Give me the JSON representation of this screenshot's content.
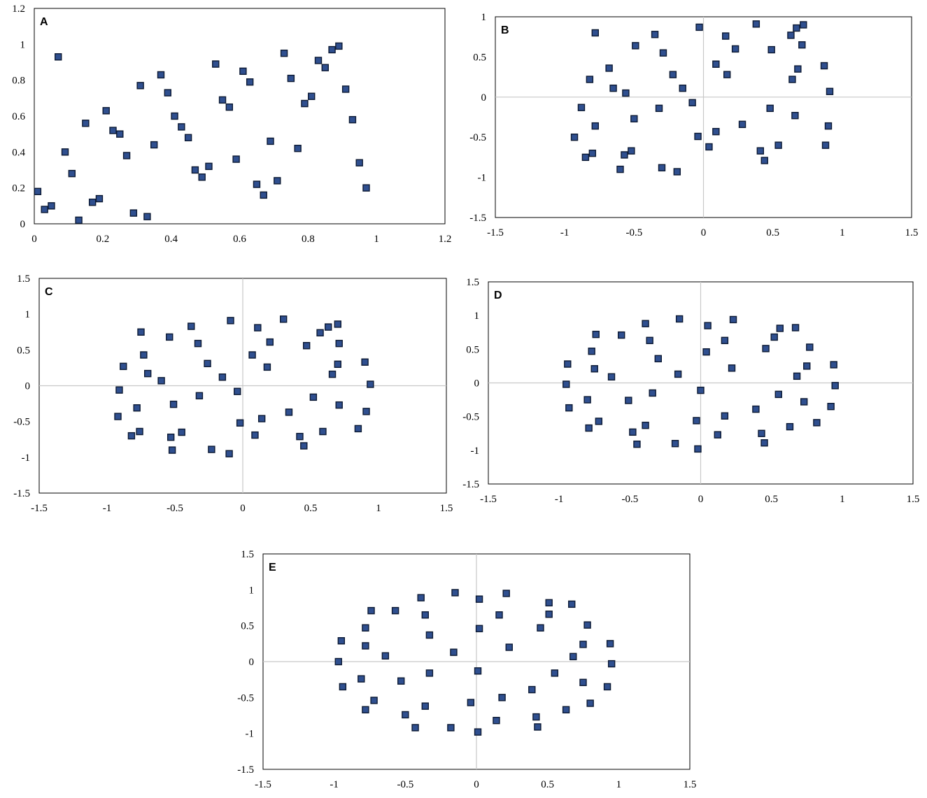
{
  "marker_fill": "#2f4f8f",
  "marker_stroke": "#0d1a33",
  "chart_data": [
    {
      "label": "A",
      "type": "scatter",
      "title": "",
      "xlabel": "",
      "ylabel": "",
      "xlim": [
        0,
        1.2
      ],
      "ylim": [
        0,
        1.2
      ],
      "xticks": [
        "0",
        "0.2",
        "0.4",
        "0.6",
        "0.8",
        "1",
        "1.2"
      ],
      "yticks": [
        "0",
        "0.2",
        "0.4",
        "0.6",
        "0.8",
        "1",
        "1.2"
      ],
      "zero_axes": false,
      "points": [
        [
          0.01,
          0.18
        ],
        [
          0.03,
          0.08
        ],
        [
          0.05,
          0.1
        ],
        [
          0.07,
          0.93
        ],
        [
          0.09,
          0.4
        ],
        [
          0.11,
          0.28
        ],
        [
          0.13,
          0.02
        ],
        [
          0.15,
          0.56
        ],
        [
          0.17,
          0.12
        ],
        [
          0.19,
          0.14
        ],
        [
          0.21,
          0.63
        ],
        [
          0.23,
          0.52
        ],
        [
          0.25,
          0.5
        ],
        [
          0.27,
          0.38
        ],
        [
          0.29,
          0.06
        ],
        [
          0.31,
          0.77
        ],
        [
          0.33,
          0.04
        ],
        [
          0.35,
          0.44
        ],
        [
          0.37,
          0.83
        ],
        [
          0.39,
          0.73
        ],
        [
          0.41,
          0.6
        ],
        [
          0.43,
          0.54
        ],
        [
          0.45,
          0.48
        ],
        [
          0.47,
          0.3
        ],
        [
          0.49,
          0.26
        ],
        [
          0.51,
          0.32
        ],
        [
          0.53,
          0.89
        ],
        [
          0.55,
          0.69
        ],
        [
          0.57,
          0.65
        ],
        [
          0.59,
          0.36
        ],
        [
          0.61,
          0.85
        ],
        [
          0.63,
          0.79
        ],
        [
          0.65,
          0.22
        ],
        [
          0.67,
          0.16
        ],
        [
          0.69,
          0.46
        ],
        [
          0.71,
          0.24
        ],
        [
          0.73,
          0.95
        ],
        [
          0.75,
          0.81
        ],
        [
          0.77,
          0.42
        ],
        [
          0.79,
          0.67
        ],
        [
          0.81,
          0.71
        ],
        [
          0.83,
          0.91
        ],
        [
          0.85,
          0.87
        ],
        [
          0.87,
          0.97
        ],
        [
          0.89,
          0.99
        ],
        [
          0.91,
          0.75
        ],
        [
          0.93,
          0.58
        ],
        [
          0.95,
          0.34
        ],
        [
          0.97,
          0.2
        ]
      ]
    },
    {
      "label": "B",
      "type": "scatter",
      "title": "",
      "xlabel": "",
      "ylabel": "",
      "xlim": [
        -1.5,
        1.5
      ],
      "ylim": [
        -1.5,
        1
      ],
      "xticks": [
        "-1.5",
        "-1",
        "-0.5",
        "0",
        "0.5",
        "1",
        "1.5"
      ],
      "yticks": [
        "-1.5",
        "-1",
        "-0.5",
        "0",
        "0.5",
        "1"
      ],
      "zero_axes": true,
      "points": [
        [
          -0.93,
          -0.5
        ],
        [
          -0.88,
          -0.13
        ],
        [
          -0.85,
          -0.75
        ],
        [
          -0.82,
          0.22
        ],
        [
          -0.8,
          -0.7
        ],
        [
          -0.78,
          -0.36
        ],
        [
          -0.78,
          0.8
        ],
        [
          -0.68,
          0.36
        ],
        [
          -0.65,
          0.11
        ],
        [
          -0.6,
          -0.9
        ],
        [
          -0.57,
          -0.72
        ],
        [
          -0.56,
          0.05
        ],
        [
          -0.52,
          -0.67
        ],
        [
          -0.5,
          -0.27
        ],
        [
          -0.49,
          0.64
        ],
        [
          -0.35,
          0.78
        ],
        [
          -0.32,
          -0.14
        ],
        [
          -0.3,
          -0.88
        ],
        [
          -0.29,
          0.55
        ],
        [
          -0.22,
          0.28
        ],
        [
          -0.19,
          -0.93
        ],
        [
          -0.15,
          0.11
        ],
        [
          -0.08,
          -0.07
        ],
        [
          -0.04,
          -0.49
        ],
        [
          -0.03,
          0.87
        ],
        [
          0.04,
          -0.62
        ],
        [
          0.09,
          0.41
        ],
        [
          0.09,
          -0.43
        ],
        [
          0.16,
          0.76
        ],
        [
          0.17,
          0.28
        ],
        [
          0.23,
          0.6
        ],
        [
          0.28,
          -0.34
        ],
        [
          0.38,
          0.91
        ],
        [
          0.41,
          -0.67
        ],
        [
          0.44,
          -0.79
        ],
        [
          0.48,
          -0.14
        ],
        [
          0.49,
          0.59
        ],
        [
          0.54,
          -0.6
        ],
        [
          0.63,
          0.77
        ],
        [
          0.64,
          0.22
        ],
        [
          0.66,
          -0.23
        ],
        [
          0.67,
          0.86
        ],
        [
          0.68,
          0.35
        ],
        [
          0.72,
          0.9
        ],
        [
          0.71,
          0.65
        ],
        [
          0.87,
          0.39
        ],
        [
          0.88,
          -0.6
        ],
        [
          0.9,
          -0.36
        ],
        [
          0.91,
          0.07
        ]
      ]
    },
    {
      "label": "C",
      "type": "scatter",
      "title": "",
      "xlabel": "",
      "ylabel": "",
      "xlim": [
        -1.5,
        1.5
      ],
      "ylim": [
        -1.5,
        1.5
      ],
      "xticks": [
        "-1.5",
        "-1",
        "-0.5",
        "0",
        "0.5",
        "1",
        "1.5"
      ],
      "yticks": [
        "-1.5",
        "-1",
        "-0.5",
        "0",
        "0.5",
        "1",
        "1.5"
      ],
      "zero_axes": true,
      "points": [
        [
          -0.92,
          -0.43
        ],
        [
          -0.91,
          -0.06
        ],
        [
          -0.88,
          0.27
        ],
        [
          -0.82,
          -0.7
        ],
        [
          -0.78,
          -0.31
        ],
        [
          -0.76,
          -0.64
        ],
        [
          -0.75,
          0.75
        ],
        [
          -0.73,
          0.43
        ],
        [
          -0.7,
          0.17
        ],
        [
          -0.6,
          0.07
        ],
        [
          -0.54,
          0.68
        ],
        [
          -0.53,
          -0.72
        ],
        [
          -0.52,
          -0.9
        ],
        [
          -0.51,
          -0.26
        ],
        [
          -0.45,
          -0.65
        ],
        [
          -0.38,
          0.83
        ],
        [
          -0.33,
          0.59
        ],
        [
          -0.32,
          -0.14
        ],
        [
          -0.26,
          0.31
        ],
        [
          -0.23,
          -0.89
        ],
        [
          -0.15,
          0.12
        ],
        [
          -0.1,
          -0.95
        ],
        [
          -0.09,
          0.91
        ],
        [
          -0.04,
          -0.08
        ],
        [
          -0.02,
          -0.52
        ],
        [
          0.07,
          0.43
        ],
        [
          0.09,
          -0.69
        ],
        [
          0.11,
          0.81
        ],
        [
          0.14,
          -0.46
        ],
        [
          0.18,
          0.26
        ],
        [
          0.2,
          0.61
        ],
        [
          0.3,
          0.93
        ],
        [
          0.34,
          -0.37
        ],
        [
          0.47,
          0.56
        ],
        [
          0.42,
          -0.71
        ],
        [
          0.45,
          -0.84
        ],
        [
          0.52,
          -0.16
        ],
        [
          0.57,
          0.74
        ],
        [
          0.59,
          -0.64
        ],
        [
          0.63,
          0.82
        ],
        [
          0.66,
          0.16
        ],
        [
          0.7,
          0.86
        ],
        [
          0.7,
          0.3
        ],
        [
          0.71,
          -0.27
        ],
        [
          0.71,
          0.59
        ],
        [
          0.85,
          -0.6
        ],
        [
          0.9,
          0.33
        ],
        [
          0.91,
          -0.36
        ],
        [
          0.94,
          0.02
        ]
      ]
    },
    {
      "label": "D",
      "type": "scatter",
      "title": "",
      "xlabel": "",
      "ylabel": "",
      "xlim": [
        -1.5,
        1.5
      ],
      "ylim": [
        -1.5,
        1.5
      ],
      "xticks": [
        "-1.5",
        "-1",
        "-0.5",
        "0",
        "0.5",
        "1",
        "1.5"
      ],
      "yticks": [
        "-1.5",
        "-1",
        "-0.5",
        "0",
        "0.5",
        "1",
        "1.5"
      ],
      "zero_axes": true,
      "points": [
        [
          -0.95,
          -0.02
        ],
        [
          -0.94,
          0.28
        ],
        [
          -0.93,
          -0.37
        ],
        [
          -0.8,
          -0.25
        ],
        [
          -0.79,
          -0.67
        ],
        [
          -0.77,
          0.47
        ],
        [
          -0.75,
          0.21
        ],
        [
          -0.74,
          0.72
        ],
        [
          -0.72,
          -0.57
        ],
        [
          -0.63,
          0.09
        ],
        [
          -0.56,
          0.71
        ],
        [
          -0.51,
          -0.26
        ],
        [
          -0.48,
          -0.73
        ],
        [
          -0.45,
          -0.91
        ],
        [
          -0.39,
          0.88
        ],
        [
          -0.39,
          -0.63
        ],
        [
          -0.36,
          0.63
        ],
        [
          -0.34,
          -0.15
        ],
        [
          -0.3,
          0.36
        ],
        [
          -0.18,
          -0.9
        ],
        [
          -0.16,
          0.13
        ],
        [
          -0.15,
          0.95
        ],
        [
          -0.03,
          -0.56
        ],
        [
          -0.02,
          -0.98
        ],
        [
          0.0,
          -0.11
        ],
        [
          0.04,
          0.46
        ],
        [
          0.05,
          0.85
        ],
        [
          0.12,
          -0.77
        ],
        [
          0.17,
          0.63
        ],
        [
          0.17,
          -0.49
        ],
        [
          0.22,
          0.22
        ],
        [
          0.23,
          0.94
        ],
        [
          0.39,
          -0.39
        ],
        [
          0.43,
          -0.75
        ],
        [
          0.45,
          -0.89
        ],
        [
          0.46,
          0.51
        ],
        [
          0.52,
          0.68
        ],
        [
          0.55,
          -0.17
        ],
        [
          0.56,
          0.81
        ],
        [
          0.63,
          -0.65
        ],
        [
          0.67,
          0.82
        ],
        [
          0.68,
          0.1
        ],
        [
          0.73,
          -0.28
        ],
        [
          0.75,
          0.25
        ],
        [
          0.77,
          0.53
        ],
        [
          0.82,
          -0.59
        ],
        [
          0.92,
          -0.35
        ],
        [
          0.94,
          0.27
        ],
        [
          0.95,
          -0.04
        ]
      ]
    },
    {
      "label": "E",
      "type": "scatter",
      "title": "",
      "xlabel": "",
      "ylabel": "",
      "xlim": [
        -1.5,
        1.5
      ],
      "ylim": [
        -1.5,
        1.5
      ],
      "xticks": [
        "-1.5",
        "-1",
        "-0.5",
        "0",
        "0.5",
        "1",
        "1.5"
      ],
      "yticks": [
        "-1.5",
        "-1",
        "-0.5",
        "0",
        "0.5",
        "1",
        "1.5"
      ],
      "zero_axes": true,
      "points": [
        [
          -0.97,
          0.0
        ],
        [
          -0.95,
          0.29
        ],
        [
          -0.94,
          -0.35
        ],
        [
          -0.81,
          -0.24
        ],
        [
          -0.78,
          0.47
        ],
        [
          -0.78,
          0.22
        ],
        [
          -0.78,
          -0.67
        ],
        [
          -0.74,
          0.71
        ],
        [
          -0.72,
          -0.54
        ],
        [
          -0.64,
          0.08
        ],
        [
          -0.57,
          0.71
        ],
        [
          -0.53,
          -0.27
        ],
        [
          -0.5,
          -0.74
        ],
        [
          -0.43,
          -0.92
        ],
        [
          -0.39,
          0.89
        ],
        [
          -0.36,
          0.65
        ],
        [
          -0.36,
          -0.62
        ],
        [
          -0.33,
          0.37
        ],
        [
          -0.33,
          -0.16
        ],
        [
          -0.18,
          -0.92
        ],
        [
          -0.16,
          0.13
        ],
        [
          -0.15,
          0.96
        ],
        [
          -0.04,
          -0.57
        ],
        [
          0.01,
          -0.98
        ],
        [
          0.01,
          -0.13
        ],
        [
          0.02,
          0.46
        ],
        [
          0.02,
          0.87
        ],
        [
          0.14,
          -0.82
        ],
        [
          0.16,
          0.65
        ],
        [
          0.18,
          -0.5
        ],
        [
          0.21,
          0.95
        ],
        [
          0.23,
          0.2
        ],
        [
          0.39,
          -0.39
        ],
        [
          0.42,
          -0.77
        ],
        [
          0.43,
          -0.91
        ],
        [
          0.45,
          0.47
        ],
        [
          0.51,
          0.66
        ],
        [
          0.51,
          0.82
        ],
        [
          0.55,
          -0.16
        ],
        [
          0.63,
          -0.67
        ],
        [
          0.67,
          0.8
        ],
        [
          0.68,
          0.07
        ],
        [
          0.75,
          -0.29
        ],
        [
          0.75,
          0.24
        ],
        [
          0.78,
          0.51
        ],
        [
          0.8,
          -0.58
        ],
        [
          0.92,
          -0.35
        ],
        [
          0.94,
          0.25
        ],
        [
          0.95,
          -0.03
        ]
      ]
    }
  ]
}
